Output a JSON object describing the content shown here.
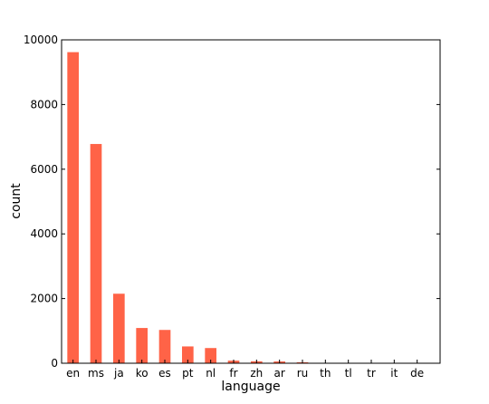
{
  "chart_data": {
    "type": "bar",
    "categories": [
      "en",
      "ms",
      "ja",
      "ko",
      "es",
      "pt",
      "nl",
      "fr",
      "zh",
      "ar",
      "ru",
      "th",
      "tl",
      "tr",
      "it",
      "de"
    ],
    "values": [
      9620,
      6780,
      2150,
      1090,
      1030,
      520,
      470,
      80,
      60,
      55,
      30,
      10,
      8,
      6,
      5,
      4
    ],
    "xlabel": "language",
    "ylabel": "count",
    "ylim": [
      0,
      10000
    ],
    "yticks": [
      "0",
      "2000",
      "4000",
      "6000",
      "8000",
      "10000"
    ],
    "bar_color": "#ff6347",
    "grid": false,
    "legend": "none"
  }
}
